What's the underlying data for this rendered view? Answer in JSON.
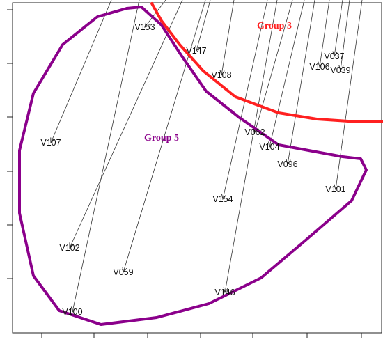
{
  "chart_data": {
    "type": "scatter",
    "title": "",
    "xlabel": "",
    "ylabel": "",
    "grid": false,
    "xlim": [
      0,
      550
    ],
    "ylim": [
      0,
      494
    ],
    "points": [
      {
        "label": "V153",
        "x": 208,
        "y": 455
      },
      {
        "label": "V147",
        "x": 282,
        "y": 421
      },
      {
        "label": "V108",
        "x": 318,
        "y": 386
      },
      {
        "label": "V106",
        "x": 459,
        "y": 398
      },
      {
        "label": "V037",
        "x": 480,
        "y": 413
      },
      {
        "label": "V039",
        "x": 489,
        "y": 393
      },
      {
        "label": "V107",
        "x": 73,
        "y": 289
      },
      {
        "label": "V062",
        "x": 366,
        "y": 304
      },
      {
        "label": "V104",
        "x": 387,
        "y": 283
      },
      {
        "label": "V096",
        "x": 413,
        "y": 258
      },
      {
        "label": "V101",
        "x": 482,
        "y": 222
      },
      {
        "label": "V154",
        "x": 320,
        "y": 208
      },
      {
        "label": "V102",
        "x": 100,
        "y": 138
      },
      {
        "label": "V059",
        "x": 177,
        "y": 103
      },
      {
        "label": "V146",
        "x": 323,
        "y": 74
      },
      {
        "label": "V100",
        "x": 104,
        "y": 46
      }
    ],
    "arrows": [
      {
        "from": "V153",
        "to": [
          238,
          494
        ]
      },
      {
        "from": "V147",
        "to": [
          302,
          494
        ]
      },
      {
        "from": "V108",
        "to": [
          336,
          494
        ]
      },
      {
        "from": "V106",
        "to": [
          473,
          494
        ]
      },
      {
        "from": "V037",
        "to": [
          492,
          494
        ]
      },
      {
        "from": "V039",
        "to": [
          502,
          494
        ]
      },
      {
        "from": "V107",
        "to": [
          160,
          494
        ]
      },
      {
        "from": "V062",
        "to": [
          420,
          494
        ]
      },
      {
        "from": "V104",
        "to": [
          437,
          494
        ]
      },
      {
        "from": "V096",
        "to": [
          452,
          494
        ]
      },
      {
        "from": "V101",
        "to": [
          520,
          494
        ]
      },
      {
        "from": "V154",
        "to": [
          384,
          494
        ]
      },
      {
        "from": "V102",
        "to": [
          262,
          494
        ]
      },
      {
        "from": "V059",
        "to": [
          295,
          494
        ]
      },
      {
        "from": "V146",
        "to": [
          398,
          494
        ]
      },
      {
        "from": "V100",
        "to": [
          200,
          494
        ]
      }
    ],
    "groups": [
      {
        "name": "Group 5",
        "color": "#8b008b",
        "label_pos": [
          232,
          297
        ],
        "path": [
          [
            182,
            482
          ],
          [
            140,
            470
          ],
          [
            90,
            430
          ],
          [
            48,
            360
          ],
          [
            28,
            278
          ],
          [
            28,
            188
          ],
          [
            48,
            98
          ],
          [
            85,
            48
          ],
          [
            145,
            28
          ],
          [
            225,
            38
          ],
          [
            300,
            58
          ],
          [
            375,
            95
          ],
          [
            440,
            150
          ],
          [
            505,
            206
          ],
          [
            526,
            250
          ],
          [
            518,
            266
          ],
          [
            492,
            269
          ],
          [
            400,
            286
          ],
          [
            344,
            325
          ],
          [
            296,
            363
          ],
          [
            260,
            415
          ],
          [
            232,
            458
          ],
          [
            203,
            484
          ],
          [
            182,
            482
          ]
        ]
      },
      {
        "name": "Group 3",
        "color": "#ff2020",
        "label_pos": [
          394,
          458
        ],
        "path": [
          [
            218,
            489
          ],
          [
            232,
            464
          ],
          [
            258,
            430
          ],
          [
            292,
            392
          ],
          [
            338,
            355
          ],
          [
            400,
            332
          ],
          [
            455,
            323
          ],
          [
            500,
            320
          ],
          [
            550,
            319
          ]
        ]
      }
    ],
    "x_ticks": [
      60,
      135,
      212,
      288,
      363,
      441,
      519
    ],
    "y_ticks": [
      94,
      171,
      248,
      326,
      403,
      480
    ]
  }
}
